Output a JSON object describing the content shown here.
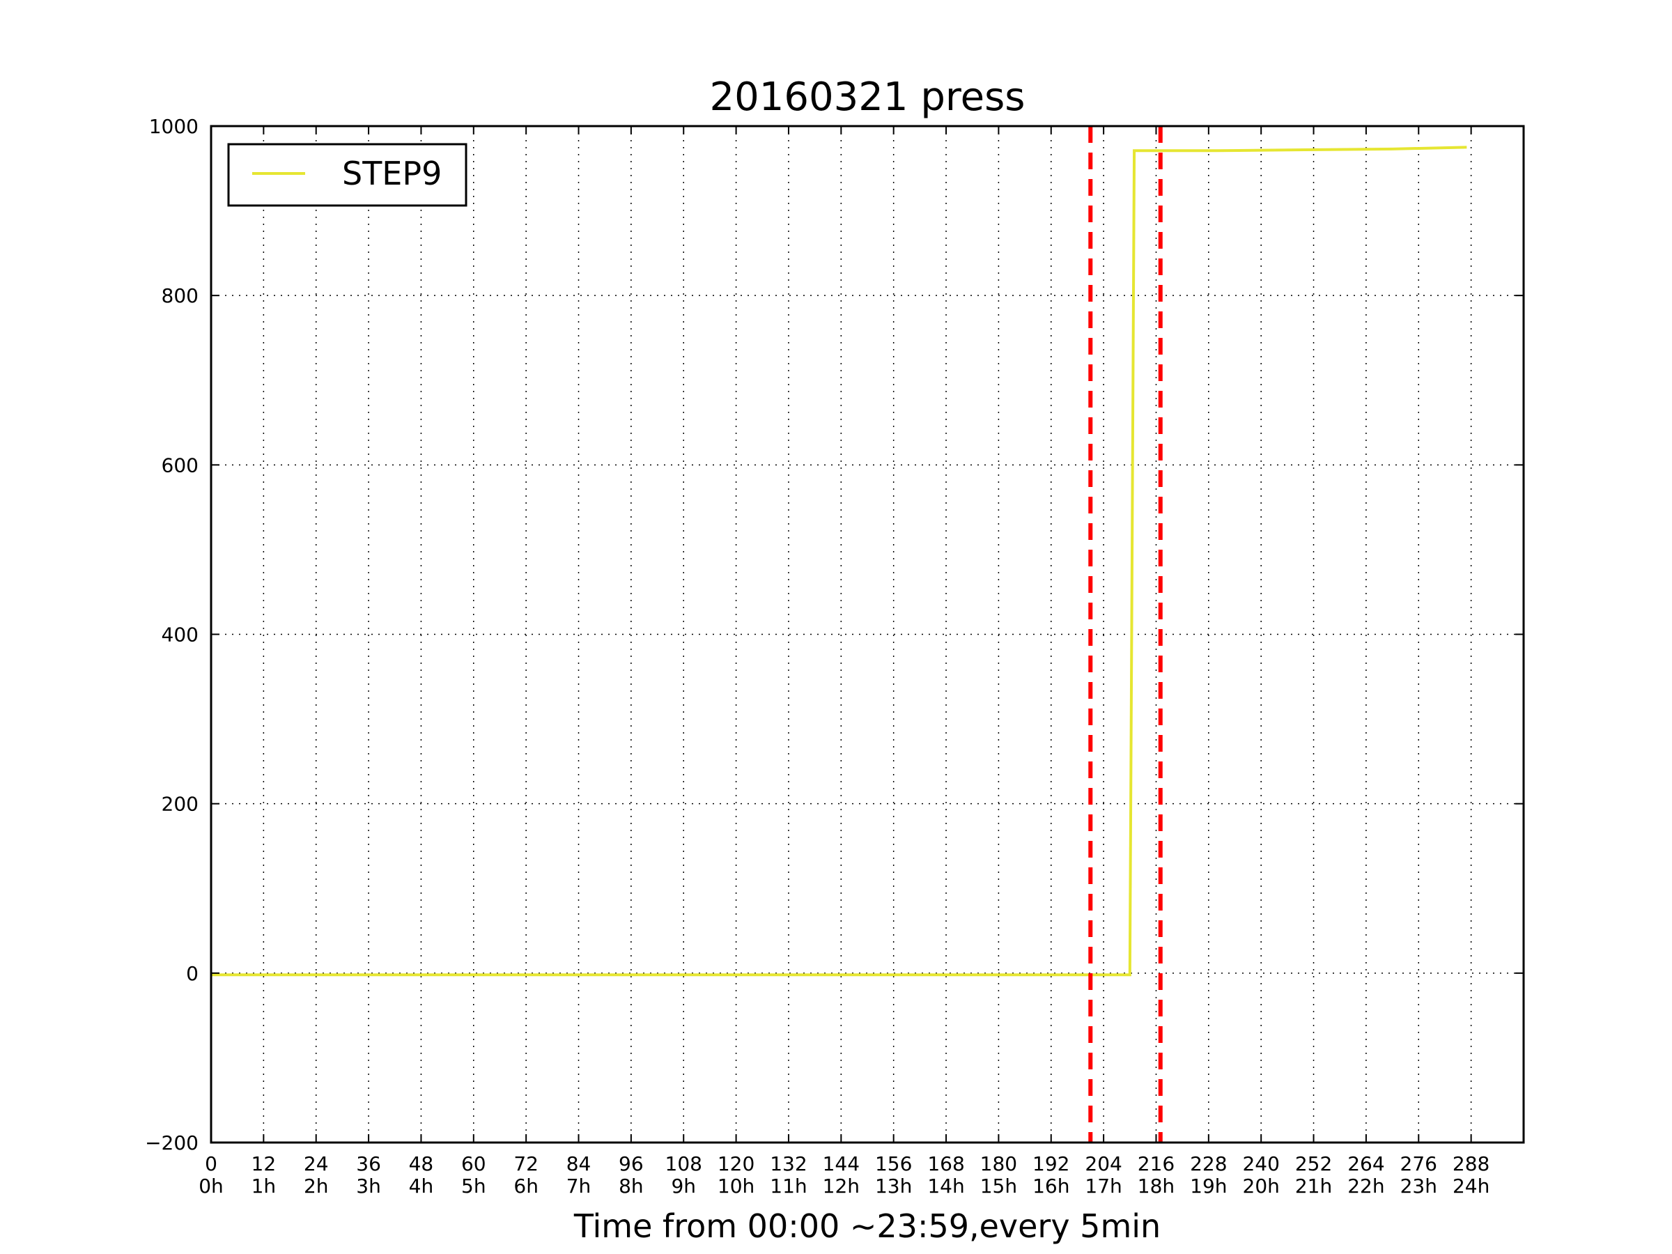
{
  "chart_data": {
    "type": "line",
    "title": "20160321 press",
    "xlabel": "Time from 00:00 ~23:59,every 5min",
    "ylabel": "",
    "xlim": [
      0,
      300
    ],
    "ylim": [
      -200,
      1000
    ],
    "grid": true,
    "legend_position": "top-left",
    "x_ticks": [
      0,
      12,
      24,
      36,
      48,
      60,
      72,
      84,
      96,
      108,
      120,
      132,
      144,
      156,
      168,
      180,
      192,
      204,
      216,
      228,
      240,
      252,
      264,
      276,
      288
    ],
    "x_tick_hour_labels": [
      "0h",
      "1h",
      "2h",
      "3h",
      "4h",
      "5h",
      "6h",
      "7h",
      "8h",
      "9h",
      "10h",
      "11h",
      "12h",
      "13h",
      "14h",
      "15h",
      "16h",
      "17h",
      "18h",
      "19h",
      "20h",
      "21h",
      "22h",
      "23h",
      "24h"
    ],
    "y_ticks": [
      -200,
      0,
      200,
      400,
      600,
      800,
      1000
    ],
    "y_tick_labels": [
      "−200",
      "0",
      "200",
      "400",
      "600",
      "800",
      "1000"
    ],
    "series": [
      {
        "name": "STEP9",
        "color": "#e6e632",
        "x": [
          0,
          50,
          100,
          150,
          200,
          210,
          211,
          216,
          230,
          250,
          270,
          287
        ],
        "y": [
          -2,
          -2,
          -2,
          -2,
          -2,
          -2,
          971,
          971,
          971,
          972,
          973,
          975
        ]
      }
    ],
    "vlines": [
      {
        "x": 201,
        "color": "#ff0000",
        "style": "dashed"
      },
      {
        "x": 217,
        "color": "#ff0000",
        "style": "dashed"
      }
    ]
  }
}
